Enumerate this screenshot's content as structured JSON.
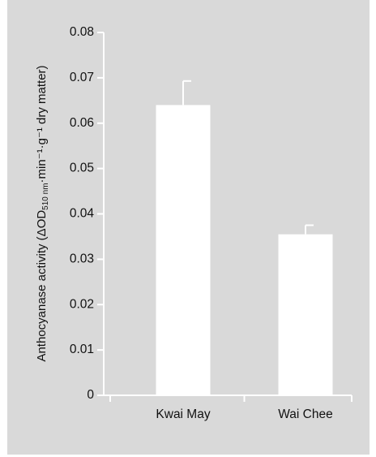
{
  "chart_data": {
    "type": "bar",
    "title": "",
    "xlabel": "",
    "ylabel": "Anthocyanase activity (ΔOD₅₁₀ ₙₘ·min⁻¹·g⁻¹ dry matter)",
    "ylabel_parts": {
      "main": "Anthocyanase activity (ΔOD",
      "sub": "510 nm",
      "rest": "·min⁻¹·g⁻¹ dry matter)"
    },
    "categories": [
      "Kwai May",
      "Wai Chee"
    ],
    "values": [
      0.064,
      0.0355
    ],
    "errors": [
      0.0053,
      0.002
    ],
    "ylim": [
      0,
      0.08
    ],
    "yticks": [
      0,
      0.01,
      0.02,
      0.03,
      0.04,
      0.05,
      0.06,
      0.07,
      0.08
    ],
    "ytick_labels": [
      "0",
      "0.01",
      "0.02",
      "0.03",
      "0.04",
      "0.05",
      "0.06",
      "0.07",
      "0.08"
    ],
    "grid": false,
    "legend": "none",
    "colors": {
      "background": "#d9d9d9",
      "bar_fill": "#ffffff",
      "axis": "#ffffff",
      "text": "#111111"
    }
  }
}
